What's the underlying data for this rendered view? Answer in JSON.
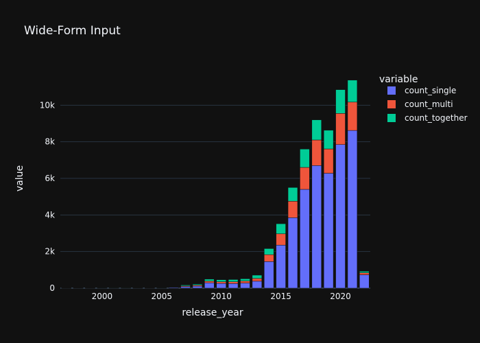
{
  "chart_data": {
    "type": "bar",
    "barmode": "stack",
    "title": "Wide-Form Input",
    "xlabel": "release_year",
    "ylabel": "value",
    "xlim": [
      1996.5,
      2022.5
    ],
    "ylim": [
      0,
      12000
    ],
    "x_ticks": [
      2000,
      2005,
      2010,
      2015,
      2020
    ],
    "x_tick_labels": [
      "2000",
      "2005",
      "2010",
      "2015",
      "2020"
    ],
    "y_ticks": [
      0,
      2000,
      4000,
      6000,
      8000,
      10000
    ],
    "y_tick_labels": [
      "0",
      "2k",
      "4k",
      "6k",
      "8k",
      "10k"
    ],
    "grid": true,
    "legend": {
      "title": "variable",
      "placement": "right"
    },
    "categories": [
      1997,
      1998,
      1999,
      2000,
      2001,
      2002,
      2003,
      2004,
      2005,
      2006,
      2007,
      2008,
      2009,
      2010,
      2011,
      2012,
      2013,
      2014,
      2015,
      2016,
      2017,
      2018,
      2019,
      2020,
      2021,
      2022
    ],
    "series": [
      {
        "name": "count_single",
        "color": "#636efa",
        "values": [
          5,
          8,
          6,
          10,
          12,
          12,
          8,
          6,
          10,
          40,
          80,
          110,
          290,
          260,
          250,
          280,
          380,
          1450,
          2350,
          3850,
          5400,
          6700,
          6280,
          7850,
          8620,
          730
        ]
      },
      {
        "name": "count_multi",
        "color": "#ef553b",
        "values": [
          2,
          3,
          2,
          4,
          4,
          4,
          3,
          3,
          4,
          15,
          40,
          50,
          90,
          90,
          100,
          110,
          150,
          380,
          620,
          900,
          1200,
          1400,
          1330,
          1700,
          1550,
          110
        ]
      },
      {
        "name": "count_together",
        "color": "#00cc96",
        "values": [
          2,
          2,
          2,
          4,
          4,
          4,
          3,
          3,
          4,
          15,
          50,
          60,
          110,
          110,
          120,
          120,
          180,
          330,
          550,
          750,
          1000,
          1100,
          1020,
          1300,
          1200,
          80
        ]
      }
    ]
  }
}
